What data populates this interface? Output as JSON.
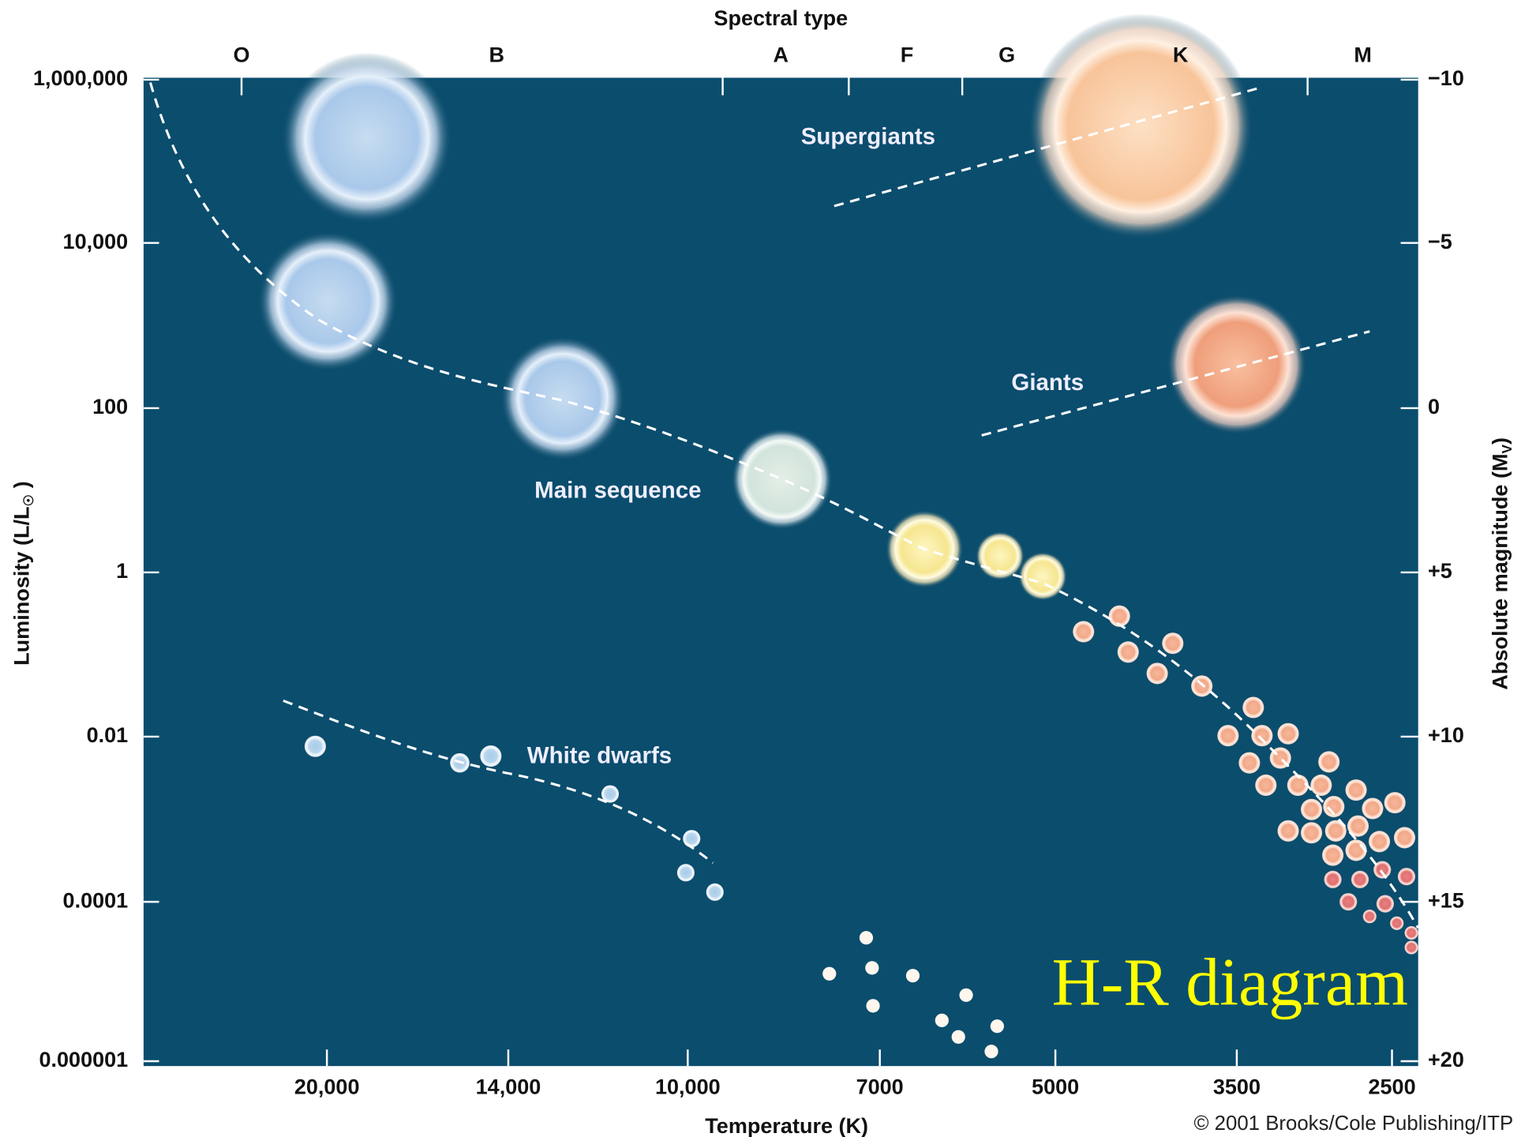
{
  "header": {
    "top_axis_title": "Spectral type",
    "spectral_types": [
      "O",
      "B",
      "A",
      "F",
      "G",
      "K",
      "M"
    ]
  },
  "left_axis": {
    "title": {
      "text": "Luminosity (L/L",
      "sub": "☉",
      "end": " )"
    },
    "labels": [
      "1,000,000",
      "10,000",
      "100",
      "1",
      "0.01",
      "0.0001",
      "0.000001"
    ]
  },
  "right_axis": {
    "title": {
      "text": "Absolute magnitude (M",
      "sub": "V",
      "end": ")"
    },
    "labels": [
      "−10",
      "−5",
      "0",
      "+5",
      "+10",
      "+15",
      "+20"
    ]
  },
  "bottom_axis": {
    "title": "Temperature (K)",
    "labels": [
      "20,000",
      "14,000",
      "10,000",
      "7000",
      "5000",
      "3500",
      "2500"
    ]
  },
  "regions": [
    "Supergiants",
    "Giants",
    "Main sequence",
    "White dwarfs"
  ],
  "overlay_title": "H-R diagram",
  "copyright": "© 2001 Brooks/Cole Publishing/ITP"
}
